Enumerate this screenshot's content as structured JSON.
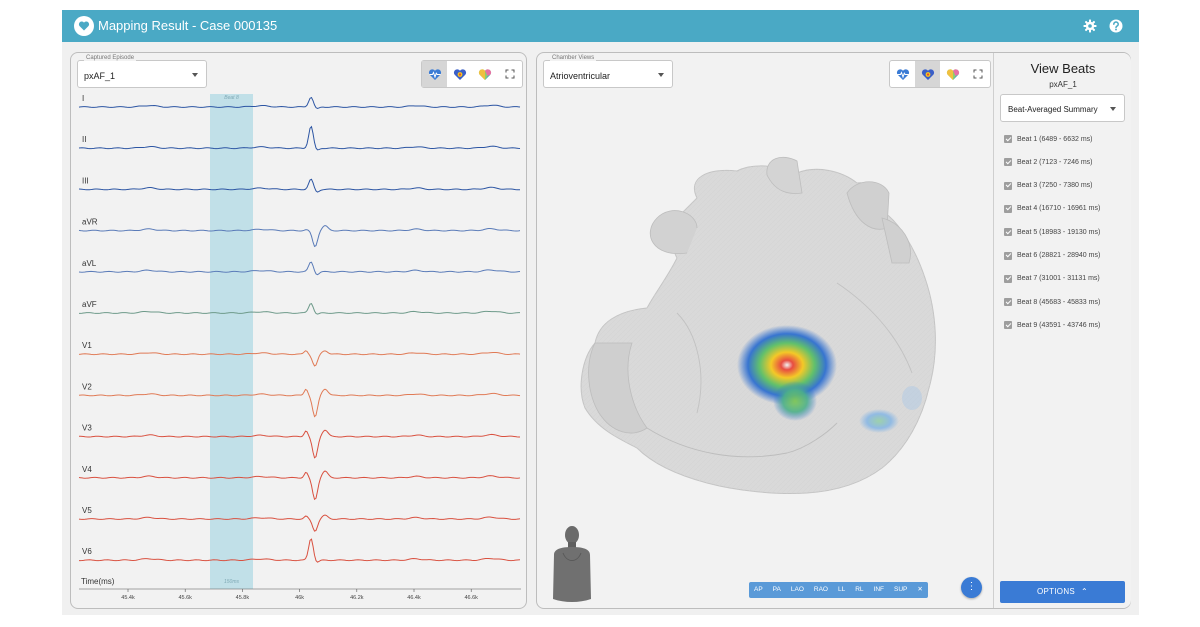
{
  "header": {
    "title": "Mapping Result - Case 000135"
  },
  "colors": {
    "header_bg": "#4aa9c5",
    "accent_blue": "#3a7bd5",
    "beat_highlight": "#b9dde6",
    "lead_blue": "#2c55a3",
    "lead_green": "#6e9a8a",
    "lead_red": "#d9503f"
  },
  "ecg_panel": {
    "episode_legend": "Captured Episode",
    "episode_value": "pxAF_1",
    "toolbar_icons": [
      "heart-pulse-icon",
      "heart-map-icon",
      "heart-multicolor-icon",
      "fullscreen-icon"
    ],
    "beat_marker_label": "Beat 8",
    "beat_duration_label": "150ms",
    "time_axis_label": "Time(ms)",
    "time_ticks": [
      "45.4k",
      "45.6k",
      "45.8k",
      "46k",
      "46.2k",
      "46.4k",
      "46.6k"
    ],
    "leads": [
      "I",
      "II",
      "III",
      "aVR",
      "aVL",
      "aVF",
      "V1",
      "V2",
      "V3",
      "V4",
      "V5",
      "V6"
    ]
  },
  "chamber_panel": {
    "chamber_legend": "Chamber Views",
    "chamber_value": "Atrioventricular",
    "toolbar_icons": [
      "heart-pulse-icon",
      "heart-map-icon",
      "heart-multicolor-icon",
      "fullscreen-icon"
    ],
    "view_buttons": [
      "AP",
      "PA",
      "LAO",
      "RAO",
      "LL",
      "RL",
      "INF",
      "SUP",
      "✕"
    ],
    "fab_label": "⋮"
  },
  "beats_pane": {
    "title": "View Beats",
    "subtitle": "pxAF_1",
    "summary_value": "Beat-Averaged Summary",
    "beats": [
      "Beat 1 (6489 - 6632 ms)",
      "Beat 2 (7123 - 7246 ms)",
      "Beat 3 (7250 - 7380 ms)",
      "Beat 4 (16710 - 16961 ms)",
      "Beat 5 (18983 - 19130 ms)",
      "Beat 6 (28821 - 28940 ms)",
      "Beat 7 (31001 - 31131 ms)",
      "Beat 8 (45683 - 45833 ms)",
      "Beat 9 (43591 - 43746 ms)"
    ],
    "options_label": "OPTIONS"
  }
}
